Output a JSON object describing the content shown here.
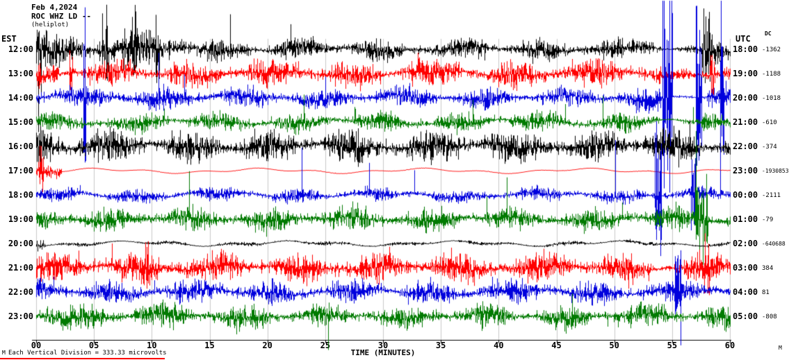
{
  "header": {
    "date": "Feb 4,2024",
    "station": "ROC WHZ LD --",
    "subtitle": "(heliplot)"
  },
  "axes": {
    "left_label": "EST",
    "right_label": "UTC",
    "dc_header": "DC"
  },
  "footnote": {
    "text": "Each Vertical Division =  333.33 microvolts",
    "underline_color": "#ff0000"
  },
  "corner_marks": {
    "bottom_left": "M",
    "bottom_right": "M"
  },
  "colors": {
    "black": "#000000",
    "red": "#ff0000",
    "blue": "#0000dd",
    "green": "#007a00",
    "grid": "#c9c9c9",
    "axis": "#000000"
  },
  "chart_data": {
    "type": "line",
    "subtype": "helicorder-seismogram",
    "xlabel": "TIME (MINUTES)",
    "x_ticks": [
      "00",
      "05",
      "10",
      "15",
      "20",
      "25",
      "30",
      "35",
      "40",
      "45",
      "50",
      "55",
      "60"
    ],
    "x_range_minutes": [
      0,
      60
    ],
    "minutes_per_row": 60,
    "vertical_division_microvolts": "333.33",
    "rows": [
      {
        "est": "12:00",
        "utc": "18:00",
        "dc": "-1362",
        "color": "#000000",
        "segments": [
          [
            0,
            1,
            30
          ],
          [
            1,
            5,
            18
          ],
          [
            5,
            13,
            26
          ],
          [
            13,
            54,
            13
          ],
          [
            54,
            57.5,
            5
          ],
          [
            57.5,
            60,
            18
          ]
        ],
        "events": [
          [
            0.3,
            68,
            0.3
          ],
          [
            6,
            60,
            0.6
          ],
          [
            8.5,
            62,
            0.5
          ],
          [
            10.5,
            58,
            0.4
          ],
          [
            58,
            66,
            0.9
          ]
        ],
        "spikes": [
          0.005,
          2.8,
          1.5
        ]
      },
      {
        "est": "13:00",
        "utc": "19:00",
        "dc": "-1188",
        "color": "#ff0000",
        "segments": [
          [
            0,
            54,
            17
          ],
          [
            54,
            57.5,
            6
          ],
          [
            57.5,
            60,
            17
          ]
        ],
        "events": [
          [
            3,
            36,
            0.3
          ],
          [
            33,
            30,
            0.3
          ],
          [
            58.5,
            34,
            0.5
          ]
        ],
        "spikes": [
          0.004,
          2.2,
          1.4
        ]
      },
      {
        "est": "14:00",
        "utc": "20:00",
        "dc": "-1018",
        "color": "#0000dd",
        "segments": [
          [
            0,
            54,
            14
          ],
          [
            54,
            58,
            5
          ],
          [
            58,
            60,
            14
          ]
        ],
        "events": [
          [
            4.2,
            130,
            0.25
          ],
          [
            54.6,
            150,
            0.9
          ],
          [
            57.3,
            140,
            0.5
          ],
          [
            59.3,
            120,
            0.4
          ]
        ],
        "spikes": [
          0.004,
          3.0,
          1.5
        ]
      },
      {
        "est": "15:00",
        "utc": "21:00",
        "dc": "-610",
        "color": "#007a00",
        "segments": [
          [
            0,
            54,
            12
          ],
          [
            54,
            57.5,
            4
          ],
          [
            57.5,
            60,
            12
          ]
        ],
        "events": [],
        "spikes": [
          0.007,
          4.0,
          1.2
        ]
      },
      {
        "est": "16:00",
        "utc": "22:00",
        "dc": "-374",
        "color": "#000000",
        "segments": [
          [
            0,
            3,
            26
          ],
          [
            3,
            60,
            21
          ]
        ],
        "events": [],
        "spikes": [
          0.003,
          2.0,
          1.5
        ]
      },
      {
        "est": "17:00",
        "utc": "23:00",
        "dc": "-1930853",
        "color": "#ff0000",
        "segments": [
          [
            0,
            2.2,
            18
          ],
          [
            2.2,
            60,
            0.5
          ]
        ],
        "events": [
          [
            0.4,
            32,
            0.5
          ]
        ],
        "spikes": [
          0,
          0,
          0
        ]
      },
      {
        "est": "18:00",
        "utc": "00:00",
        "dc": "-2111",
        "color": "#0000dd",
        "segments": [
          [
            0,
            60,
            9
          ]
        ],
        "events": [
          [
            53.8,
            95,
            0.6
          ],
          [
            56.8,
            80,
            0.4
          ]
        ],
        "spikes": [
          0.005,
          8.0,
          1.5
        ]
      },
      {
        "est": "19:00",
        "utc": "01:00",
        "dc": "-79",
        "color": "#007a00",
        "segments": [
          [
            0,
            60,
            15
          ]
        ],
        "events": [
          [
            57.5,
            60,
            1.2
          ]
        ],
        "spikes": [
          0.01,
          3.5,
          1.3
        ]
      },
      {
        "est": "20:00",
        "utc": "02:00",
        "dc": "-640688",
        "color": "#000000",
        "segments": [
          [
            0,
            0.8,
            20
          ],
          [
            0.8,
            60,
            2.5
          ]
        ],
        "events": [],
        "spikes": [
          0.002,
          2.0,
          1.0
        ]
      },
      {
        "est": "21:00",
        "utc": "03:00",
        "dc": "384",
        "color": "#ff0000",
        "segments": [
          [
            0,
            53.5,
            19
          ],
          [
            53.5,
            56,
            8
          ],
          [
            56,
            60,
            19
          ]
        ],
        "events": [
          [
            9.5,
            40,
            0.4
          ],
          [
            58,
            40,
            0.6
          ]
        ],
        "spikes": [
          0.003,
          2.0,
          1.3
        ]
      },
      {
        "est": "22:00",
        "utc": "04:00",
        "dc": "81",
        "color": "#0000dd",
        "segments": [
          [
            0,
            60,
            15
          ]
        ],
        "events": [
          [
            55.5,
            60,
            0.5
          ]
        ],
        "spikes": [
          0.004,
          2.5,
          1.4
        ]
      },
      {
        "est": "23:00",
        "utc": "05:00",
        "dc": "-808",
        "color": "#007a00",
        "segments": [
          [
            0,
            3,
            24
          ],
          [
            3,
            60,
            15
          ]
        ],
        "events": [],
        "spikes": [
          0.006,
          2.5,
          2.2
        ]
      }
    ]
  }
}
